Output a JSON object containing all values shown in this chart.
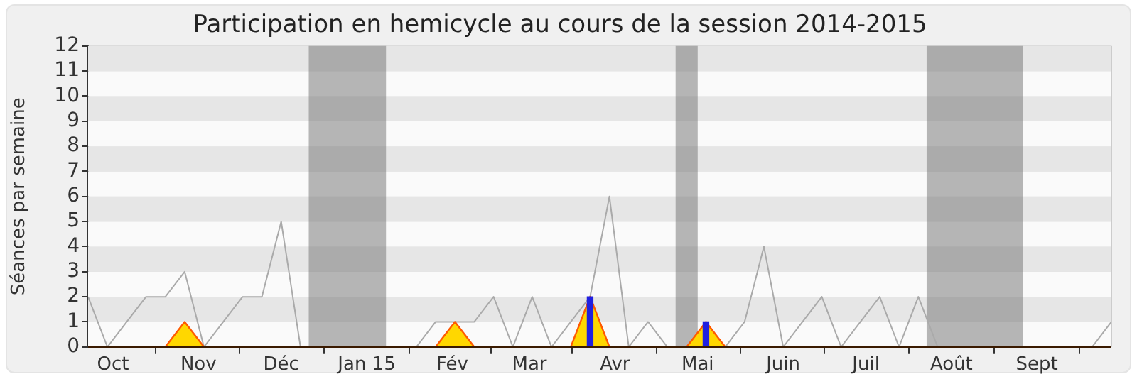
{
  "chart_data": {
    "type": "line",
    "title": "Participation en hemicycle au cours de la session 2014-2015",
    "ylabel": "Séances par semaine",
    "x": [
      "2014-09-22",
      "2014-09-29",
      "2014-10-06",
      "2014-10-13",
      "2014-10-20",
      "2014-10-27",
      "2014-11-03",
      "2014-11-10",
      "2014-11-17",
      "2014-11-24",
      "2014-12-01",
      "2014-12-08",
      "2014-12-15",
      "2014-12-22",
      "2014-12-29",
      "2015-01-05",
      "2015-01-12",
      "2015-01-19",
      "2015-01-26",
      "2015-02-02",
      "2015-02-09",
      "2015-02-16",
      "2015-02-23",
      "2015-03-02",
      "2015-03-09",
      "2015-03-16",
      "2015-03-23",
      "2015-03-30",
      "2015-04-06",
      "2015-04-13",
      "2015-04-20",
      "2015-04-27",
      "2015-05-04",
      "2015-05-11",
      "2015-05-18",
      "2015-05-25",
      "2015-06-01",
      "2015-06-08",
      "2015-06-15",
      "2015-06-22",
      "2015-06-29",
      "2015-07-06",
      "2015-07-13",
      "2015-07-20",
      "2015-07-27",
      "2015-08-03",
      "2015-08-10",
      "2015-08-17",
      "2015-08-24",
      "2015-08-31",
      "2015-09-07",
      "2015-09-14",
      "2015-09-21",
      "2015-09-28"
    ],
    "xlim": [
      "2014-09-22",
      "2015-09-28"
    ],
    "xticks": [
      {
        "value": "2014-10-01",
        "label": "Oct"
      },
      {
        "value": "2014-11-01",
        "label": "Nov"
      },
      {
        "value": "2014-12-01",
        "label": "Déc"
      },
      {
        "value": "2015-01-01",
        "label": "Jan 15"
      },
      {
        "value": "2015-02-01",
        "label": "Fév"
      },
      {
        "value": "2015-03-01",
        "label": "Mar"
      },
      {
        "value": "2015-04-01",
        "label": "Avr"
      },
      {
        "value": "2015-05-01",
        "label": "Mai"
      },
      {
        "value": "2015-06-01",
        "label": "Juin"
      },
      {
        "value": "2015-07-01",
        "label": "Juil"
      },
      {
        "value": "2015-08-01",
        "label": "Août"
      },
      {
        "value": "2015-09-01",
        "label": "Sept"
      }
    ],
    "ylim": [
      0,
      12
    ],
    "yticks": [
      0,
      1,
      2,
      3,
      4,
      5,
      6,
      7,
      8,
      9,
      10,
      11,
      12
    ],
    "grid": "y",
    "marker": "none",
    "bands": [
      {
        "axis": "x",
        "from": "2014-12-11",
        "to": "2015-01-08",
        "color": "#707070"
      },
      {
        "axis": "x",
        "from": "2015-04-23",
        "to": "2015-05-01",
        "color": "#707070"
      },
      {
        "axis": "x",
        "from": "2015-07-23",
        "to": "2015-08-27",
        "color": "#707070"
      }
    ],
    "series": [
      {
        "color": "#aaaaaa",
        "values": [
          2,
          0,
          1,
          2,
          2,
          3,
          0,
          1,
          2,
          2,
          5,
          0,
          0,
          0,
          0,
          0,
          0,
          0,
          1,
          1,
          1,
          2,
          0,
          2,
          0,
          1,
          2,
          6,
          0,
          1,
          0,
          0,
          0,
          0,
          1,
          4,
          0,
          1,
          2,
          0,
          1,
          2,
          0,
          2,
          0,
          0,
          0,
          0,
          0,
          0,
          0,
          0,
          0,
          1
        ]
      },
      {
        "type": "area",
        "color": "#ffd700",
        "values": [
          0,
          0,
          0,
          0,
          0,
          1,
          0,
          0,
          0,
          0,
          0,
          0,
          0,
          0,
          0,
          0,
          0,
          0,
          0,
          1,
          0,
          0,
          0,
          0,
          0,
          0,
          2,
          0,
          0,
          0,
          0,
          0,
          1,
          0,
          0,
          0,
          0,
          0,
          0,
          0,
          0,
          0,
          0,
          0,
          0,
          0,
          0,
          0,
          0,
          0,
          0,
          0,
          0,
          0
        ]
      },
      {
        "type": "bar",
        "color": "#2020e0",
        "values": [
          null,
          null,
          null,
          null,
          null,
          null,
          null,
          null,
          null,
          null,
          null,
          null,
          null,
          null,
          null,
          null,
          null,
          null,
          null,
          null,
          null,
          null,
          null,
          null,
          null,
          null,
          2,
          null,
          null,
          null,
          null,
          null,
          1,
          null,
          null,
          null,
          null,
          null,
          null,
          null,
          null,
          null,
          null,
          null,
          null,
          null,
          null,
          null,
          null,
          null,
          null,
          null,
          null,
          null
        ]
      }
    ]
  }
}
